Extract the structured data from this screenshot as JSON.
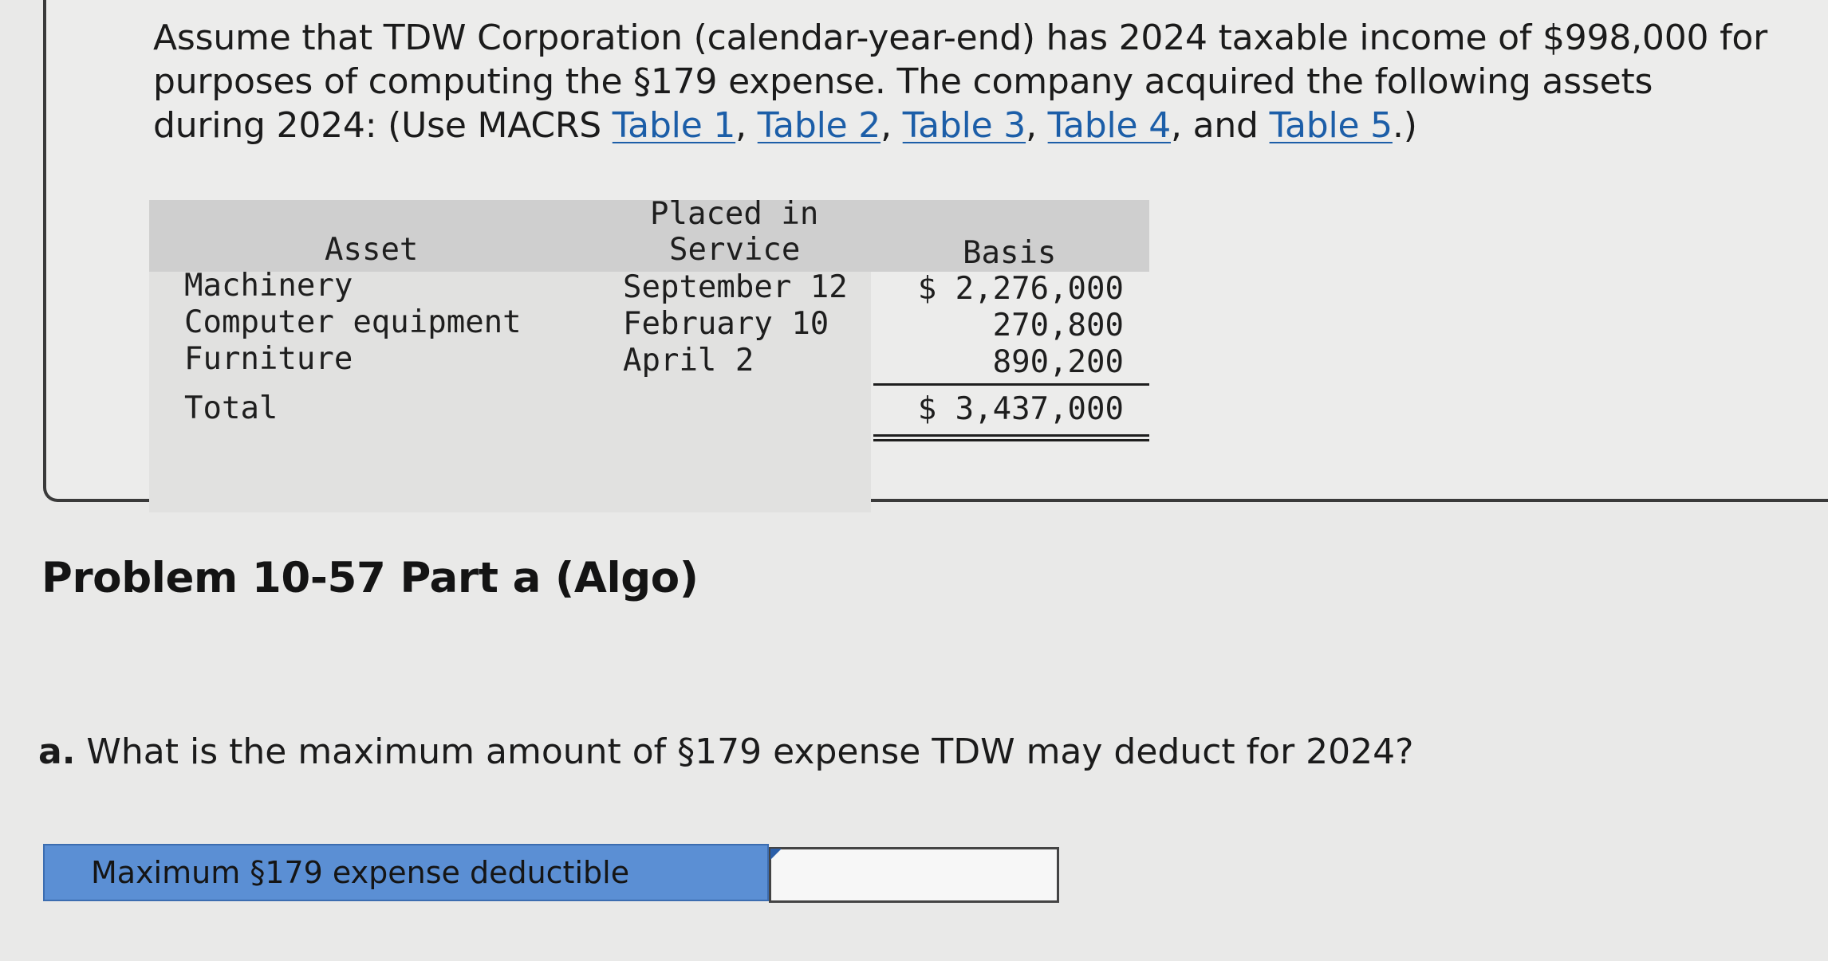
{
  "intro": {
    "text_1": "Assume that TDW Corporation (calendar-year-end) has 2024 taxable income of $998,000 for purposes of computing the §179 expense. The company acquired the following assets during 2024: (Use MACRS ",
    "link_table1": "Table 1",
    "sep1": ", ",
    "link_table2": "Table 2",
    "sep2": ", ",
    "link_table3": "Table 3",
    "sep3": ", ",
    "link_table4": "Table 4",
    "sep4": ", and ",
    "link_table5": "Table 5",
    "text_end": ".)"
  },
  "asset_table": {
    "headers": {
      "asset": "Asset",
      "placed_line1": "Placed in",
      "placed_line2": "Service",
      "basis": "Basis"
    },
    "rows": [
      {
        "asset": "Machinery",
        "placed": "September 12",
        "basis": "$ 2,276,000"
      },
      {
        "asset": "Computer equipment",
        "placed": "February 10",
        "basis": "270,800"
      },
      {
        "asset": "Furniture",
        "placed": "April 2",
        "basis": "890,200"
      }
    ],
    "total_label": "Total",
    "total_value": "$ 3,437,000"
  },
  "problem": {
    "title": "Problem 10-57 Part a (Algo)"
  },
  "question": {
    "letter": "a.",
    "text": " What is the maximum amount of §179 expense TDW may deduct for 2024?"
  },
  "answer": {
    "label": "Maximum §179 expense deductible",
    "value": ""
  },
  "colors": {
    "link": "#1c5ea8",
    "answer_label_bg": "#5b8fd4",
    "table_header_bg": "#cfcfcf"
  }
}
